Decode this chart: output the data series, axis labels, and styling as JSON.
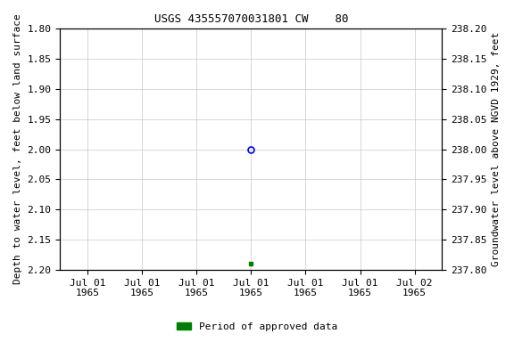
{
  "title": "USGS 435557070031801 CW    80",
  "ylabel_left": "Depth to water level, feet below land surface",
  "ylabel_right": "Groundwater level above NGVD 1929, feet",
  "ylim_left": [
    2.2,
    1.8
  ],
  "ylim_right": [
    237.8,
    238.2
  ],
  "yticks_left": [
    1.8,
    1.85,
    1.9,
    1.95,
    2.0,
    2.05,
    2.1,
    2.15,
    2.2
  ],
  "yticks_right": [
    238.2,
    238.15,
    238.1,
    238.05,
    238.0,
    237.95,
    237.9,
    237.85,
    237.8
  ],
  "xtick_labels": [
    "Jul 01\n1965",
    "Jul 01\n1965",
    "Jul 01\n1965",
    "Jul 01\n1965",
    "Jul 01\n1965",
    "Jul 01\n1965",
    "Jul 02\n1965"
  ],
  "data_open_value": 2.0,
  "data_open_color": "blue",
  "data_filled_value": 2.19,
  "data_filled_color": "green",
  "legend_label": "Period of approved data",
  "legend_color": "green",
  "background_color": "#ffffff",
  "grid_color": "#c8c8c8",
  "title_fontsize": 9,
  "label_fontsize": 8,
  "tick_fontsize": 8
}
